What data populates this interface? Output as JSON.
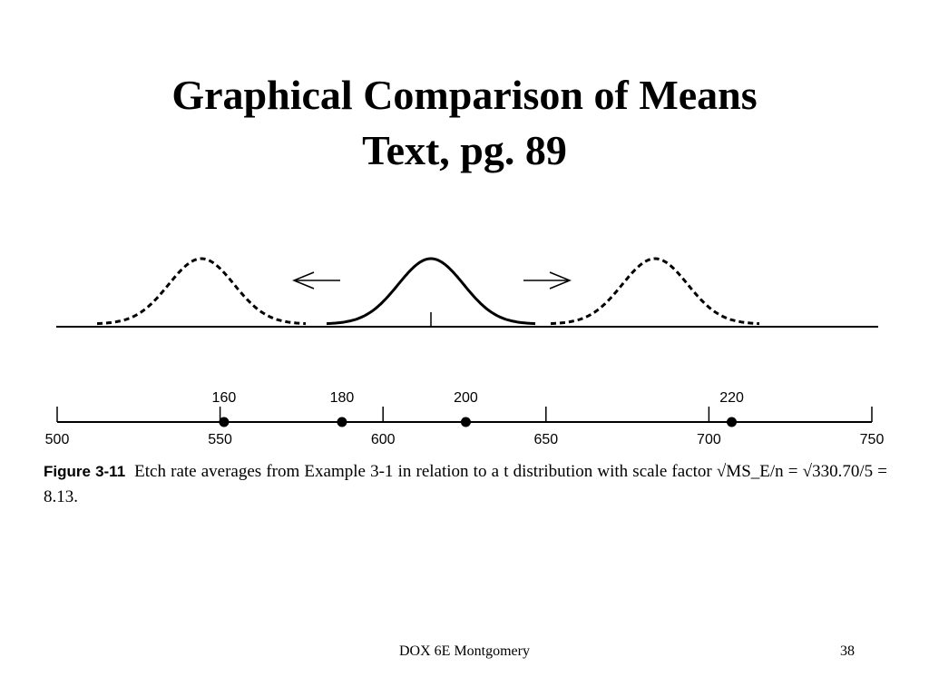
{
  "slide": {
    "title_line1": "Graphical Comparison of Means",
    "title_line2": "Text, pg. 89",
    "footer_center": "DOX 6E Montgomery",
    "page_number": "38"
  },
  "caption": {
    "label": "Figure 3-11",
    "text": "Etch rate averages from Example 3-1 in relation to a t distribution with scale factor √MS_E/n = √330.70/5 = 8.13."
  },
  "figure": {
    "axis_ticks": [
      "500",
      "550",
      "600",
      "650",
      "700",
      "750"
    ],
    "axis_range": [
      500,
      750
    ],
    "treatment_means": [
      {
        "label": "160",
        "value": 551.2
      },
      {
        "label": "180",
        "value": 587.4
      },
      {
        "label": "200",
        "value": 625.4
      },
      {
        "label": "220",
        "value": 707.0
      }
    ],
    "curves": [
      {
        "style": "dashed"
      },
      {
        "style": "solid"
      },
      {
        "style": "dashed"
      }
    ],
    "arrows": [
      "left",
      "right"
    ]
  }
}
